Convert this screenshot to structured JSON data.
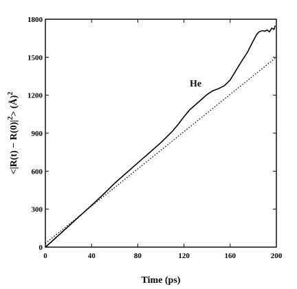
{
  "chart_data": {
    "type": "line",
    "xlabel": "Time (ps)",
    "ylabel_parts": {
      "pre": "<|R(t) − R(0)|",
      "sup1": "2",
      "mid": "> (",
      "unit": "Å",
      "post": ")",
      "sup2": "2"
    },
    "annotation": "He",
    "xlim": [
      0,
      200
    ],
    "ylim": [
      0,
      1800
    ],
    "xticks": [
      0,
      40,
      80,
      120,
      160,
      200
    ],
    "xtick_labels": [
      "0",
      "40",
      "80",
      "120",
      "160",
      "200"
    ],
    "yticks": [
      0,
      300,
      600,
      900,
      1200,
      1500,
      1800
    ],
    "ytick_labels": [
      "0",
      "300",
      "600",
      "900",
      "1200",
      "1500",
      "1800"
    ],
    "grid": false,
    "series": [
      {
        "style": "solid",
        "x": [
          0,
          5,
          10,
          20,
          30,
          40,
          50,
          60,
          70,
          80,
          90,
          100,
          110,
          115,
          120,
          125,
          130,
          135,
          140,
          145,
          150,
          155,
          160,
          165,
          170,
          175,
          180,
          183,
          185,
          188,
          190,
          192,
          194,
          196,
          198,
          199
        ],
        "y": [
          0,
          40,
          82,
          165,
          248,
          330,
          415,
          505,
          585,
          665,
          745,
          825,
          915,
          970,
          1030,
          1085,
          1125,
          1165,
          1205,
          1235,
          1252,
          1275,
          1320,
          1395,
          1470,
          1540,
          1630,
          1680,
          1700,
          1710,
          1705,
          1715,
          1700,
          1730,
          1720,
          1750
        ]
      },
      {
        "style": "dotted",
        "x": [
          0,
          200
        ],
        "y": [
          30,
          1500
        ]
      }
    ]
  }
}
